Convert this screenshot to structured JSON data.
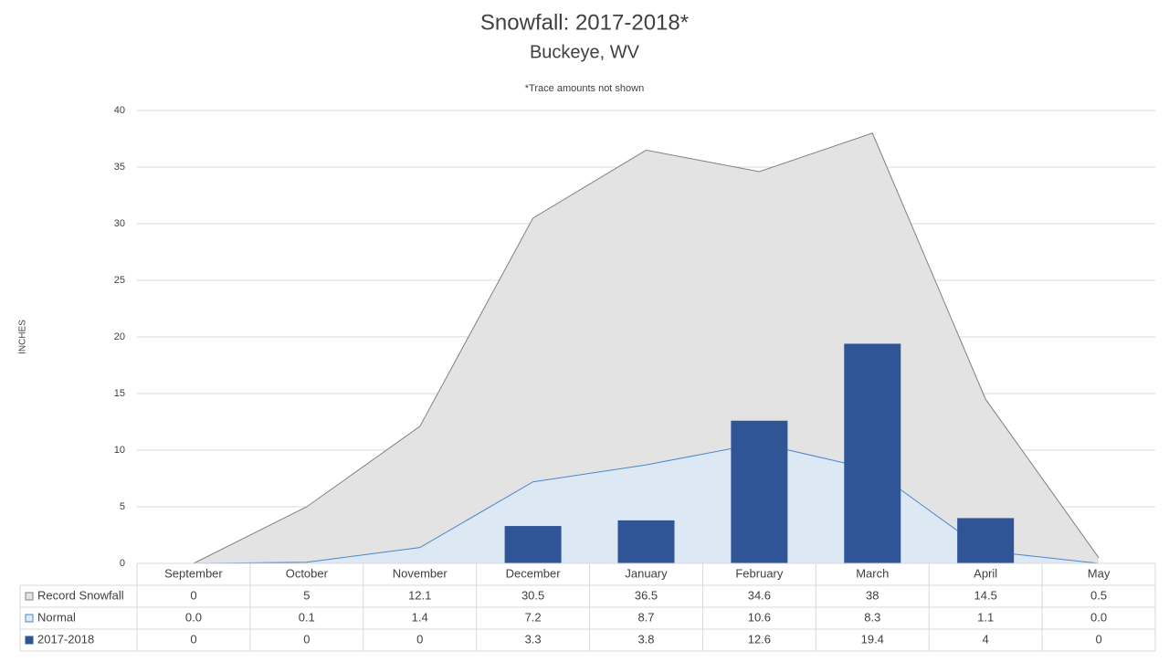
{
  "chart_data": {
    "type": "combo",
    "title": "Snowfall: 2017-2018*",
    "subtitle": "Buckeye, WV",
    "note": "*Trace amounts not shown",
    "y_label": "INCHES",
    "categories": [
      "September",
      "October",
      "November",
      "December",
      "January",
      "February",
      "March",
      "April",
      "May"
    ],
    "series": [
      {
        "name": "Record Snowfall",
        "kind": "area",
        "color": "#e3e3e3",
        "line_color": "#808080",
        "values": [
          0,
          5,
          12.1,
          30.5,
          36.5,
          34.6,
          38,
          14.5,
          0.5
        ]
      },
      {
        "name": "Normal",
        "kind": "area",
        "color": "#dde8f5",
        "line_color": "#4a86c8",
        "values": [
          0,
          0.1,
          1.4,
          7.2,
          8.7,
          10.6,
          8.3,
          1.1,
          0
        ],
        "value_labels": [
          "0.0",
          "0.1",
          "1.4",
          "7.2",
          "8.7",
          "10.6",
          "8.3",
          "1.1",
          "0.0"
        ]
      },
      {
        "name": "2017-2018",
        "kind": "bar",
        "color": "#2f5597",
        "values": [
          0,
          0,
          0,
          3.3,
          3.8,
          12.6,
          19.4,
          4,
          0
        ]
      }
    ],
    "ylim": [
      0,
      40
    ],
    "yticks": [
      0,
      5,
      10,
      15,
      20,
      25,
      30,
      35,
      40
    ],
    "grid": true,
    "data_table": true
  }
}
